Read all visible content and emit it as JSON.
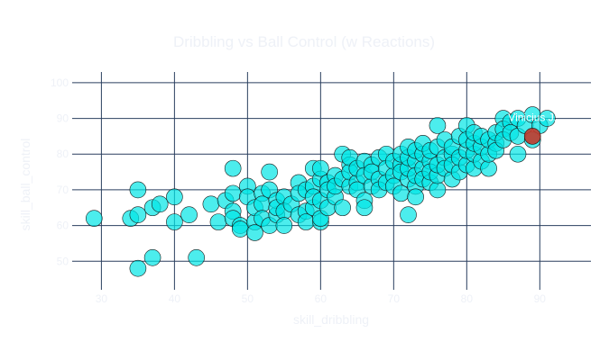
{
  "chart_data": {
    "type": "scatter",
    "title": "Dribbling vs Ball Control (w Reactions)",
    "xlabel": "skill_dribbling",
    "ylabel": "skill_ball_control",
    "xlim": [
      26,
      97
    ],
    "ylim": [
      42,
      103
    ],
    "x_ticks": [
      30,
      40,
      50,
      60,
      70,
      80,
      90
    ],
    "y_ticks": [
      50,
      60,
      70,
      80,
      90,
      100
    ],
    "grid": true,
    "colors": {
      "points": "#00e5e5",
      "highlight": "#c0392b",
      "grid": "#2a3f5f",
      "text": "#eef1f7"
    },
    "annotation": {
      "text": "Vinicius J.",
      "x": 89,
      "y": 85
    },
    "series": [
      {
        "points": [
          [
            29,
            62
          ],
          [
            34,
            62
          ],
          [
            35,
            63
          ],
          [
            35,
            70
          ],
          [
            35,
            48
          ],
          [
            37,
            51
          ],
          [
            37,
            65
          ],
          [
            38,
            66
          ],
          [
            40,
            61
          ],
          [
            40,
            68
          ],
          [
            42,
            63
          ],
          [
            43,
            51
          ],
          [
            45,
            66
          ],
          [
            46,
            61
          ],
          [
            47,
            67
          ],
          [
            48,
            76
          ],
          [
            48,
            69
          ],
          [
            48,
            64
          ],
          [
            48,
            62
          ],
          [
            49,
            60
          ],
          [
            49,
            59
          ],
          [
            50,
            71
          ],
          [
            50,
            68
          ],
          [
            51,
            61
          ],
          [
            51,
            58
          ],
          [
            51,
            65
          ],
          [
            52,
            69
          ],
          [
            52,
            66
          ],
          [
            52,
            62
          ],
          [
            53,
            60
          ],
          [
            53,
            75
          ],
          [
            53,
            70
          ],
          [
            54,
            63
          ],
          [
            54,
            67
          ],
          [
            54,
            65
          ],
          [
            55,
            68
          ],
          [
            55,
            64
          ],
          [
            55,
            60
          ],
          [
            56,
            66
          ],
          [
            57,
            72
          ],
          [
            57,
            69
          ],
          [
            57,
            63
          ],
          [
            58,
            70
          ],
          [
            58,
            64
          ],
          [
            58,
            61
          ],
          [
            59,
            65
          ],
          [
            59,
            71
          ],
          [
            59,
            76
          ],
          [
            59,
            68
          ],
          [
            60,
            61
          ],
          [
            60,
            67
          ],
          [
            60,
            62
          ],
          [
            60,
            73
          ],
          [
            60,
            76
          ],
          [
            61,
            72
          ],
          [
            61,
            65
          ],
          [
            61,
            70
          ],
          [
            62,
            68
          ],
          [
            62,
            74
          ],
          [
            62,
            71
          ],
          [
            63,
            80
          ],
          [
            63,
            65
          ],
          [
            63,
            73
          ],
          [
            64,
            77
          ],
          [
            64,
            71
          ],
          [
            64,
            75
          ],
          [
            64,
            79
          ],
          [
            65,
            72
          ],
          [
            65,
            76
          ],
          [
            65,
            70
          ],
          [
            66,
            78
          ],
          [
            66,
            74
          ],
          [
            66,
            67
          ],
          [
            66,
            65
          ],
          [
            67,
            71
          ],
          [
            67,
            77
          ],
          [
            67,
            75
          ],
          [
            68,
            79
          ],
          [
            68,
            73
          ],
          [
            68,
            70
          ],
          [
            69,
            80
          ],
          [
            69,
            76
          ],
          [
            69,
            72
          ],
          [
            70,
            74
          ],
          [
            70,
            78
          ],
          [
            70,
            71
          ],
          [
            71,
            77
          ],
          [
            71,
            75
          ],
          [
            71,
            80
          ],
          [
            71,
            69
          ],
          [
            72,
            73
          ],
          [
            72,
            76
          ],
          [
            72,
            79
          ],
          [
            72,
            63
          ],
          [
            72,
            82
          ],
          [
            73,
            71
          ],
          [
            73,
            78
          ],
          [
            73,
            74
          ],
          [
            73,
            68
          ],
          [
            73,
            81
          ],
          [
            74,
            76
          ],
          [
            74,
            80
          ],
          [
            74,
            73
          ],
          [
            74,
            83
          ],
          [
            75,
            72
          ],
          [
            75,
            78
          ],
          [
            75,
            75
          ],
          [
            75,
            81
          ],
          [
            76,
            88
          ],
          [
            76,
            70
          ],
          [
            76,
            74
          ],
          [
            76,
            77
          ],
          [
            76,
            82
          ],
          [
            77,
            79
          ],
          [
            77,
            76
          ],
          [
            77,
            84
          ],
          [
            78,
            73
          ],
          [
            78,
            80
          ],
          [
            78,
            77
          ],
          [
            78,
            82
          ],
          [
            79,
            75
          ],
          [
            79,
            79
          ],
          [
            79,
            85
          ],
          [
            80,
            88
          ],
          [
            80,
            77
          ],
          [
            80,
            81
          ],
          [
            80,
            84
          ],
          [
            81,
            76
          ],
          [
            81,
            80
          ],
          [
            81,
            83
          ],
          [
            81,
            86
          ],
          [
            82,
            78
          ],
          [
            82,
            82
          ],
          [
            82,
            85
          ],
          [
            83,
            76
          ],
          [
            83,
            80
          ],
          [
            83,
            84
          ],
          [
            84,
            83
          ],
          [
            84,
            86
          ],
          [
            84,
            81
          ],
          [
            85,
            90
          ],
          [
            85,
            87
          ],
          [
            85,
            84
          ],
          [
            86,
            89
          ],
          [
            86,
            86
          ],
          [
            87,
            90
          ],
          [
            87,
            85
          ],
          [
            87,
            80
          ],
          [
            88,
            88
          ],
          [
            89,
            91
          ],
          [
            89,
            84
          ],
          [
            90,
            88
          ],
          [
            91,
            90
          ]
        ]
      }
    ]
  }
}
